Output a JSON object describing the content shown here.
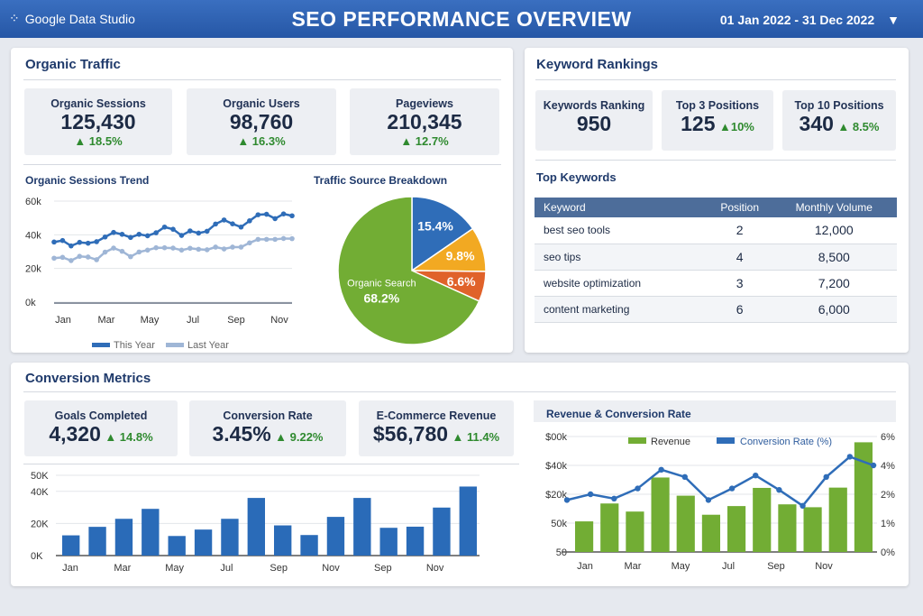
{
  "header": {
    "logo": "Google Data Studio",
    "title": "SEO PERFORMANCE OVERVIEW",
    "date_range": "01 Jan 2022 - 31 Dec 2022",
    "dropdown_icon": "caret-down-icon"
  },
  "organic": {
    "title": "Organic Traffic",
    "kpis": [
      {
        "label": "Organic Sessions",
        "value": "125,430",
        "delta": "▲ 18.5%"
      },
      {
        "label": "Organic Users",
        "value": "98,760",
        "delta": "▲ 16.3%"
      },
      {
        "label": "Pageviews",
        "value": "210,345",
        "delta": "▲ 12.7%"
      }
    ]
  },
  "keywords": {
    "title": "Keyword Rankings",
    "kpis": [
      {
        "label": "Keywords Ranking",
        "value": "950",
        "delta": ""
      },
      {
        "label": "Top 3 Positions",
        "value": "125",
        "delta": "▲10%"
      },
      {
        "label": "Top 10 Positions",
        "value": "340",
        "delta": "▲ 8.5%"
      }
    ],
    "top_title": "Top Keywords",
    "columns": [
      "Keyword",
      "Position",
      "Monthly Volume"
    ],
    "rows": [
      [
        "best seo tools",
        "2",
        "12,000"
      ],
      [
        "seo tips",
        "4",
        "8,500"
      ],
      [
        "website optimization",
        "3",
        "7,200"
      ],
      [
        "content marketing",
        "6",
        "6,000"
      ]
    ]
  },
  "conversion": {
    "title": "Conversion Metrics",
    "kpis": [
      {
        "label": "Goals Completed",
        "value": "4,320",
        "delta": "▲ 14.8%"
      },
      {
        "label": "Conversion Rate",
        "value": "3.45%",
        "delta": "▲ 9.22%"
      },
      {
        "label": "E-Commerce Revenue",
        "value": "$56,780",
        "delta": "▲ 11.4%"
      }
    ]
  },
  "chart_data": [
    {
      "type": "line",
      "title": "Organic Sessions Trend",
      "ylim": [
        0,
        60
      ],
      "yticks": [
        "0k",
        "20k",
        "40k",
        "60k"
      ],
      "xticks": [
        "Jan",
        "Mar",
        "May",
        "Jul",
        "Sep",
        "Nov"
      ],
      "legend": "bottom",
      "grid": true,
      "series": [
        {
          "name": "This Year",
          "color": "#2f6db8",
          "values": [
            35.7,
            36.6,
            33.4,
            35.5,
            35,
            35.9,
            38.7,
            41.4,
            40.3,
            38.4,
            40.3,
            39.4,
            41.2,
            44.6,
            43.3,
            39.6,
            42.3,
            41,
            42.1,
            46.4,
            48.8,
            46.5,
            44.6,
            48.3,
            51.9,
            52.2,
            49.6,
            52.4,
            51.3
          ]
        },
        {
          "name": "Last Year",
          "color": "#9fb6d6",
          "values": [
            26.1,
            26.6,
            24.7,
            27.2,
            26.8,
            25.2,
            29.7,
            32.1,
            30.2,
            27,
            29.8,
            30.9,
            32.3,
            32.3,
            32.1,
            30.9,
            32,
            31.4,
            31.1,
            32.7,
            31.6,
            32.7,
            32.7,
            35.2,
            37.3,
            37.3,
            37.3,
            37.8,
            37.7
          ]
        }
      ]
    },
    {
      "type": "pie",
      "title": "Traffic Source Breakdown",
      "slices": [
        {
          "label": "",
          "value": 15.4,
          "color": "#2f6db8"
        },
        {
          "label": "",
          "value": 9.8,
          "color": "#f2a922"
        },
        {
          "label": "",
          "value": 6.6,
          "color": "#e0622a"
        },
        {
          "label": "Organic Search",
          "value": 68.2,
          "color": "#72ad34"
        }
      ]
    },
    {
      "type": "bar",
      "title": "",
      "ylim": [
        0,
        50
      ],
      "yticks": [
        {
          "v": 0,
          "t": "0K"
        },
        {
          "v": 20,
          "t": "20K"
        },
        {
          "v": 40,
          "t": "40K"
        },
        {
          "v": 50,
          "t": "50K"
        }
      ],
      "xticks": [
        "Jan",
        "Mar",
        "May",
        "Jul",
        "Sep",
        "Nov",
        "Sep",
        "Nov"
      ],
      "color": "#2a6bb8",
      "values": [
        12.6,
        17.9,
        22.9,
        29.1,
        12.2,
        16.2,
        22.9,
        35.9,
        18.8,
        12.8,
        24.1,
        35.9,
        17.3,
        18,
        29.9,
        43
      ]
    },
    {
      "type": "bar+line",
      "title": "Revenue & Conversion Rate",
      "legend": "top",
      "left_ticks": [
        {
          "v": 0,
          "t": "50"
        },
        {
          "v": 10,
          "t": "50k"
        },
        {
          "v": 20,
          "t": "$20k"
        },
        {
          "v": 40,
          "t": "$40k"
        },
        {
          "v": 60,
          "t": "$00k"
        }
      ],
      "right_ticks": [
        {
          "v": 0,
          "t": "0%"
        },
        {
          "v": 1,
          "t": "1%"
        },
        {
          "v": 2,
          "t": "2%"
        },
        {
          "v": 4,
          "t": "4%"
        },
        {
          "v": 6,
          "t": "6%"
        }
      ],
      "xticks": [
        "Jan",
        "Mar",
        "May",
        "Jul",
        "Sep",
        "Nov"
      ],
      "series": [
        {
          "name": "Revenue",
          "color": "#72ad34",
          "values": [
            10.6,
            16.8,
            14,
            31.6,
            19.5,
            12.9,
            15.9,
            24.4,
            16.5,
            15.5,
            24.6,
            56
          ]
        },
        {
          "name": "Conversion Rate (%)",
          "color": "#2f6db8",
          "values": [
            1.8,
            2.0,
            1.85,
            2.4,
            3.7,
            3.2,
            1.8,
            2.4,
            3.3,
            2.3,
            1.6,
            3.2,
            4.6,
            4.0
          ]
        }
      ]
    }
  ]
}
